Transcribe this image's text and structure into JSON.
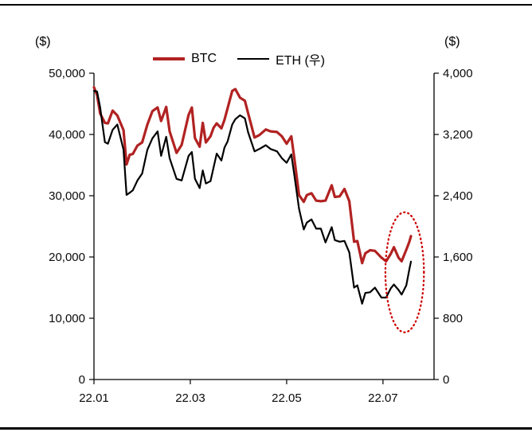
{
  "chart_data": {
    "type": "line",
    "title": "",
    "left_axis": {
      "unit_label": "($)",
      "min": 0,
      "max": 50000,
      "tick_values": [
        0,
        10000,
        20000,
        30000,
        40000,
        50000
      ],
      "tick_labels": [
        "0",
        "10,000",
        "20,000",
        "30,000",
        "40,000",
        "50,000"
      ]
    },
    "right_axis": {
      "unit_label": "($)",
      "min": 0,
      "max": 4000,
      "tick_values": [
        0,
        800,
        1600,
        2400,
        3200,
        4000
      ],
      "tick_labels": [
        "0",
        "800",
        "1,600",
        "2,400",
        "3,200",
        "4,000"
      ]
    },
    "x_axis": {
      "min_months": 0,
      "max_months": 7.06,
      "tick_positions_months": [
        0,
        2,
        4,
        6
      ],
      "tick_labels": [
        "22.01",
        "22.03",
        "22.05",
        "22.07"
      ]
    },
    "legend": [
      {
        "label": "BTC",
        "color": "#b22222"
      },
      {
        "label": "ETH (우)",
        "color": "#000000"
      }
    ],
    "x_months": [
      0,
      0.065,
      0.129,
      0.226,
      0.29,
      0.387,
      0.484,
      0.613,
      0.677,
      0.742,
      0.806,
      0.903,
      1.0,
      1.107,
      1.214,
      1.321,
      1.393,
      1.5,
      1.571,
      1.714,
      1.821,
      1.964,
      2.032,
      2.097,
      2.194,
      2.258,
      2.323,
      2.419,
      2.484,
      2.548,
      2.645,
      2.71,
      2.774,
      2.871,
      2.935,
      3.033,
      3.133,
      3.2,
      3.333,
      3.433,
      3.567,
      3.667,
      3.8,
      3.9,
      4.0,
      4.097,
      4.161,
      4.258,
      4.355,
      4.419,
      4.516,
      4.613,
      4.71,
      4.806,
      4.935,
      5.0,
      5.1,
      5.2,
      5.3,
      5.4,
      5.467,
      5.567,
      5.633,
      5.733,
      5.833,
      5.967,
      6.065,
      6.161,
      6.226,
      6.323,
      6.387,
      6.484,
      6.548,
      6.581
    ],
    "series": [
      {
        "name": "BTC",
        "axis": "left",
        "color": "#b22222",
        "width": 3.2,
        "values": [
          47700,
          46400,
          43400,
          41900,
          41800,
          43900,
          43100,
          40700,
          35100,
          36700,
          36800,
          38200,
          38700,
          41600,
          43800,
          44400,
          42200,
          44500,
          40500,
          37000,
          38300,
          43200,
          44400,
          39400,
          38000,
          41900,
          38700,
          39700,
          41100,
          41800,
          41000,
          42400,
          44300,
          47100,
          47400,
          46000,
          45500,
          43500,
          39500,
          39900,
          40800,
          40500,
          40400,
          39700,
          38500,
          39700,
          36000,
          30100,
          29000,
          30100,
          30400,
          29200,
          29100,
          29200,
          31700,
          29800,
          29900,
          31100,
          29100,
          22500,
          22600,
          19000,
          20600,
          21100,
          21000,
          19900,
          19300,
          20500,
          21600,
          19900,
          19300,
          21200,
          22500,
          23400
        ]
      },
      {
        "name": "ETH (우)",
        "axis": "right",
        "color": "#000000",
        "width": 2.2,
        "values": [
          3770,
          3760,
          3550,
          3100,
          3080,
          3260,
          3330,
          3000,
          2410,
          2440,
          2470,
          2600,
          2690,
          3000,
          3150,
          3240,
          2920,
          3170,
          2890,
          2620,
          2600,
          2920,
          2970,
          2620,
          2500,
          2730,
          2560,
          2590,
          2770,
          2950,
          2860,
          3030,
          3110,
          3330,
          3400,
          3450,
          3410,
          3230,
          2980,
          3010,
          3060,
          3010,
          2980,
          2890,
          2830,
          2940,
          2660,
          2230,
          1960,
          2050,
          2090,
          1970,
          1970,
          1790,
          1990,
          1820,
          1800,
          1810,
          1660,
          1200,
          1230,
          990,
          1130,
          1140,
          1200,
          1070,
          1070,
          1190,
          1240,
          1170,
          1110,
          1230,
          1440,
          1540
        ]
      }
    ],
    "annotation_ellipse": {
      "center_month": 6.45,
      "center_value_left": 17500,
      "radius_months": 0.4,
      "radius_value_left": 9800,
      "color": "#cc0000",
      "style": "dotted"
    }
  }
}
